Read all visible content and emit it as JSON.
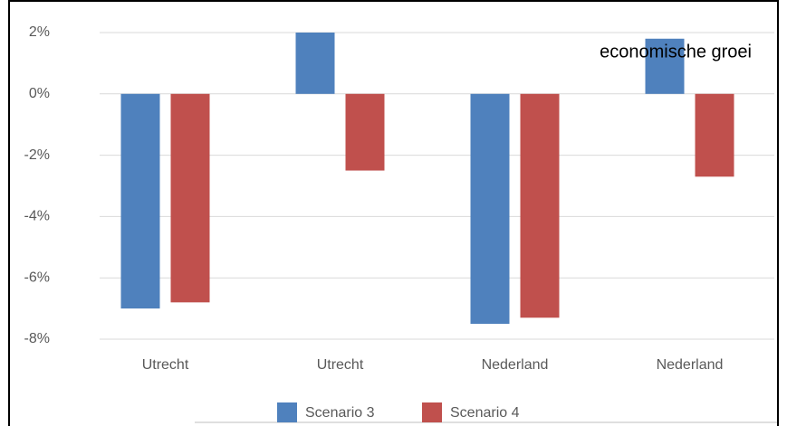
{
  "chart_data": {
    "type": "bar",
    "title": "economische groei",
    "categories": [
      "Utrecht",
      "Utrecht",
      "Nederland",
      "Nederland"
    ],
    "series": [
      {
        "name": "Scenario 3",
        "color": "#4f81bd",
        "values": [
          -7.0,
          2.0,
          -7.5,
          1.8
        ]
      },
      {
        "name": "Scenario 4",
        "color": "#c0504d",
        "values": [
          -6.8,
          -2.5,
          -7.3,
          -2.7
        ]
      }
    ],
    "ylim": [
      -8,
      2
    ],
    "yticks": [
      {
        "value": -8,
        "label": "-8%"
      },
      {
        "value": -6,
        "label": "-6%"
      },
      {
        "value": -4,
        "label": "-4%"
      },
      {
        "value": -2,
        "label": "-2%"
      },
      {
        "value": 0,
        "label": "0%"
      },
      {
        "value": 2,
        "label": "2%"
      }
    ],
    "grid": true,
    "legend": "bottom"
  }
}
